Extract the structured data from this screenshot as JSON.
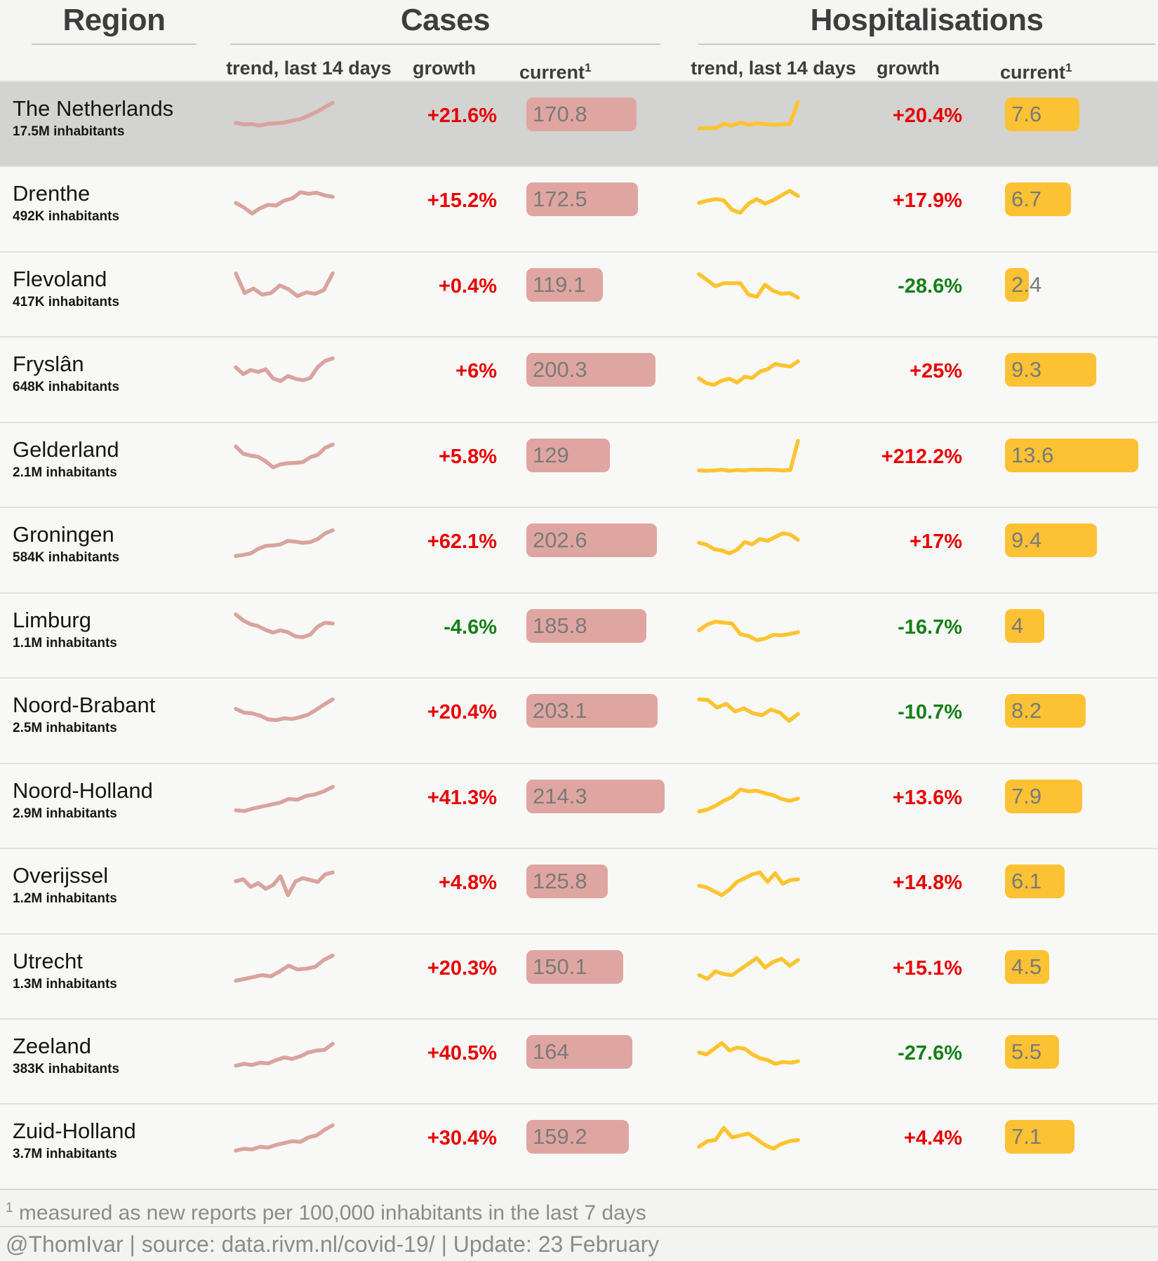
{
  "header": {
    "region_title": "Region",
    "cases_title": "Cases",
    "hosp_title": "Hospitalisations",
    "trend_label": "trend, last 14 days",
    "growth_label": "growth",
    "current_label": "current",
    "current_superscript": "1"
  },
  "colors": {
    "cases_line": "#d9a49e",
    "cases_bar": "#dfa6a1",
    "hosp_line": "#fdc431",
    "hosp_bar": "#fcc234",
    "growth_positive": "#e60000",
    "growth_negative": "#157f17",
    "bar_value_text": "#7a7a7a",
    "highlight_row": "#d3d3d1"
  },
  "rows": [
    {
      "region": "The Netherlands",
      "population": "17.5M inhabitants",
      "highlighted": true,
      "cases": {
        "growth": "+21.6%",
        "current": 170.8,
        "trend": [
          3.3,
          2.9,
          3.0,
          2.6,
          3.1,
          3.2,
          3.4,
          3.9,
          4.3,
          5.2,
          6.2,
          7.4,
          8.6
        ]
      },
      "hosp": {
        "growth": "+20.4%",
        "current": 7.6,
        "trend": [
          1.8,
          2.0,
          1.9,
          3.1,
          2.6,
          3.4,
          2.8,
          3.2,
          3.0,
          2.8,
          2.9,
          3.0,
          8.8
        ]
      }
    },
    {
      "region": "Drenthe",
      "population": "492K inhabitants",
      "highlighted": false,
      "cases": {
        "growth": "+15.2%",
        "current": 172.5,
        "trend": [
          4.6,
          3.4,
          1.8,
          3.2,
          4.1,
          3.9,
          5.2,
          5.8,
          7.4,
          7.0,
          7.3,
          6.6,
          6.2
        ]
      },
      "hosp": {
        "growth": "+17.9%",
        "current": 6.7,
        "trend": [
          4.6,
          5.2,
          5.6,
          5.3,
          2.8,
          2.0,
          4.4,
          5.6,
          4.4,
          5.3,
          6.6,
          7.8,
          6.4
        ]
      }
    },
    {
      "region": "Flevoland",
      "population": "417K inhabitants",
      "highlighted": false,
      "cases": {
        "growth": "+0.4%",
        "current": 119.1,
        "trend": [
          8.6,
          3.4,
          4.6,
          3.0,
          3.4,
          5.4,
          4.4,
          2.6,
          3.6,
          3.2,
          4.2,
          8.6
        ]
      },
      "hosp": {
        "growth": "-28.6%",
        "current": 2.4,
        "trend": [
          8.4,
          6.8,
          5.2,
          6.0,
          6.0,
          6.0,
          3.0,
          2.4,
          5.6,
          4.0,
          3.2,
          3.4,
          2.2
        ]
      }
    },
    {
      "region": "Fryslân",
      "population": "648K inhabitants",
      "highlighted": false,
      "cases": {
        "growth": "+6%",
        "current": 200.3,
        "trend": [
          6.2,
          4.4,
          5.5,
          5.0,
          5.7,
          3.3,
          2.6,
          3.9,
          3.2,
          2.8,
          3.4,
          6.3,
          7.9,
          8.6
        ]
      },
      "hosp": {
        "growth": "+25%",
        "current": 9.3,
        "trend": [
          3.3,
          2.0,
          1.6,
          2.7,
          3.2,
          2.2,
          3.7,
          3.4,
          5.1,
          5.7,
          7.1,
          6.7,
          6.4,
          7.8
        ]
      }
    },
    {
      "region": "Gelderland",
      "population": "2.1M inhabitants",
      "highlighted": false,
      "cases": {
        "growth": "+5.8%",
        "current": 129,
        "trend": [
          7.9,
          6.0,
          5.5,
          5.2,
          4.0,
          2.4,
          3.2,
          3.5,
          3.6,
          3.8,
          5.1,
          5.7,
          7.6,
          8.4
        ]
      },
      "hosp": {
        "growth": "+212.2%",
        "current": 13.6,
        "trend": [
          1.6,
          1.5,
          1.6,
          1.8,
          1.5,
          1.7,
          1.6,
          1.8,
          1.7,
          1.8,
          1.7,
          1.6,
          1.7,
          9.4
        ]
      }
    },
    {
      "region": "Groningen",
      "population": "584K inhabitants",
      "highlighted": false,
      "cases": {
        "growth": "+62.1%",
        "current": 202.6,
        "trend": [
          1.4,
          1.7,
          2.1,
          3.3,
          4.1,
          4.2,
          4.5,
          5.4,
          5.2,
          4.9,
          5.1,
          5.9,
          7.4,
          8.2
        ]
      },
      "hosp": {
        "growth": "+17%",
        "current": 9.4,
        "trend": [
          4.9,
          4.4,
          3.2,
          2.9,
          2.1,
          3.1,
          5.1,
          4.5,
          5.9,
          5.4,
          6.4,
          7.4,
          7.1,
          5.7
        ]
      }
    },
    {
      "region": "Limburg",
      "population": "1.1M inhabitants",
      "highlighted": false,
      "cases": {
        "growth": "-4.6%",
        "current": 185.8,
        "trend": [
          8.6,
          7.0,
          6.0,
          5.5,
          4.5,
          3.8,
          4.4,
          3.9,
          2.8,
          2.6,
          3.3,
          5.4,
          6.4,
          6.2
        ]
      },
      "hosp": {
        "growth": "-16.7%",
        "current": 4,
        "trend": [
          4.4,
          5.9,
          6.7,
          6.4,
          6.2,
          3.4,
          2.9,
          1.8,
          2.2,
          3.2,
          3.1,
          3.4,
          3.9
        ]
      }
    },
    {
      "region": "Noord-Brabant",
      "population": "2.5M inhabitants",
      "highlighted": false,
      "cases": {
        "growth": "+20.4%",
        "current": 203.1,
        "trend": [
          6.1,
          5.1,
          4.9,
          4.3,
          3.3,
          3.1,
          3.6,
          3.4,
          3.9,
          4.6,
          5.9,
          7.3,
          8.6
        ]
      },
      "hosp": {
        "growth": "-10.7%",
        "current": 8.2,
        "trend": [
          8.6,
          8.4,
          6.4,
          7.4,
          5.4,
          6.2,
          4.9,
          4.4,
          5.9,
          5.1,
          2.9,
          4.7
        ]
      }
    },
    {
      "region": "Noord-Holland",
      "population": "2.9M inhabitants",
      "highlighted": false,
      "cases": {
        "growth": "+41.3%",
        "current": 214.3,
        "trend": [
          1.9,
          1.7,
          2.4,
          2.9,
          3.4,
          3.9,
          4.9,
          4.7,
          5.7,
          6.1,
          6.9,
          8.1
        ]
      },
      "hosp": {
        "growth": "+13.6%",
        "current": 7.9,
        "trend": [
          1.6,
          2.1,
          3.1,
          4.4,
          5.4,
          7.4,
          6.9,
          7.1,
          6.4,
          5.9,
          4.9,
          4.4,
          5.0
        ]
      }
    },
    {
      "region": "Overijssel",
      "population": "1.2M inhabitants",
      "highlighted": false,
      "cases": {
        "growth": "+4.8%",
        "current": 125.8,
        "trend": [
          5.6,
          6.1,
          4.1,
          5.1,
          3.6,
          4.6,
          6.9,
          1.9,
          5.5,
          6.4,
          5.9,
          5.4,
          7.4,
          7.9
        ]
      },
      "hosp": {
        "growth": "+14.8%",
        "current": 6.1,
        "trend": [
          4.4,
          4.0,
          2.9,
          1.9,
          3.4,
          5.4,
          6.4,
          7.4,
          7.9,
          5.4,
          7.7,
          4.9,
          5.9,
          6.1
        ]
      }
    },
    {
      "region": "Utrecht",
      "population": "1.3M inhabitants",
      "highlighted": false,
      "cases": {
        "growth": "+20.3%",
        "current": 150.1,
        "trend": [
          1.9,
          2.4,
          2.9,
          3.4,
          3.1,
          4.4,
          5.9,
          4.9,
          5.1,
          5.6,
          7.4,
          8.6
        ]
      },
      "hosp": {
        "growth": "+15.1%",
        "current": 4.5,
        "trend": [
          3.4,
          2.4,
          4.4,
          3.7,
          3.4,
          4.9,
          6.4,
          7.9,
          5.4,
          6.9,
          7.7,
          5.9,
          7.4
        ]
      }
    },
    {
      "region": "Zeeland",
      "population": "383K inhabitants",
      "highlighted": false,
      "cases": {
        "growth": "+40.5%",
        "current": 164,
        "trend": [
          1.9,
          2.4,
          2.1,
          2.7,
          2.5,
          3.4,
          4.1,
          3.7,
          4.4,
          5.4,
          5.9,
          6.1,
          7.7
        ]
      },
      "hosp": {
        "growth": "-27.6%",
        "current": 5.5,
        "trend": [
          5.4,
          4.9,
          6.4,
          7.9,
          5.9,
          6.7,
          6.4,
          4.9,
          3.9,
          3.4,
          2.4,
          2.9,
          2.7,
          3.1
        ]
      }
    },
    {
      "region": "Zuid-Holland",
      "population": "3.7M inhabitants",
      "highlighted": false,
      "cases": {
        "growth": "+30.4%",
        "current": 159.2,
        "trend": [
          1.9,
          2.4,
          2.2,
          2.9,
          2.7,
          3.4,
          3.9,
          4.4,
          4.2,
          5.4,
          5.9,
          7.4,
          8.6
        ]
      },
      "hosp": {
        "growth": "+4.4%",
        "current": 7.1,
        "trend": [
          2.9,
          4.4,
          4.7,
          7.9,
          5.4,
          5.9,
          6.4,
          4.9,
          3.4,
          2.4,
          3.7,
          4.4,
          4.7
        ]
      }
    }
  ],
  "footer": {
    "footnote_superscript": "1",
    "footnote_text": " measured as new reports per 100,000 inhabitants in the last 7 days",
    "credit": "@ThomIvar | source: data.rivm.nl/covid-19/ | Update: 23 February"
  },
  "chart_data": {
    "type": "table",
    "title": "COVID-19 Cases and Hospitalisations by Dutch region",
    "columns": [
      "Region",
      "Cases trend (last 14 days)",
      "Cases growth",
      "Cases current per 100k/7d",
      "Hospitalisations trend (last 14 days)",
      "Hospitalisations growth",
      "Hospitalisations current per 100k/7d"
    ],
    "rows": [
      [
        "The Netherlands (17.5M)",
        "rising",
        "+21.6%",
        170.8,
        "flat then spike",
        "+20.4%",
        7.6
      ],
      [
        "Drenthe (492K)",
        "dip then rise",
        "+15.2%",
        172.5,
        "jagged rising",
        "+17.9%",
        6.7
      ],
      [
        "Flevoland (417K)",
        "volatile, end spike",
        "+0.4%",
        119.1,
        "declining",
        "-28.6%",
        2.4
      ],
      [
        "Fryslân (648K)",
        "dip then strong rise",
        "+6%",
        200.3,
        "rising",
        "+25%",
        9.3
      ],
      [
        "Gelderland (2.1M)",
        "U-shape rise",
        "+5.8%",
        129,
        "flat then huge spike",
        "+212.2%",
        13.6
      ],
      [
        "Groningen (584K)",
        "steady rise",
        "+62.1%",
        202.6,
        "dip then rise",
        "+17%",
        9.4
      ],
      [
        "Limburg (1.1M)",
        "decline then recover",
        "-4.6%",
        185.8,
        "peak then decline",
        "-16.7%",
        4
      ],
      [
        "Noord-Brabant (2.5M)",
        "U-shape strong rise",
        "+20.4%",
        203.1,
        "declining jagged",
        "-10.7%",
        8.2
      ],
      [
        "Noord-Holland (2.9M)",
        "steady rise",
        "+41.3%",
        214.3,
        "rise peak then ease",
        "+13.6%",
        7.9
      ],
      [
        "Overijssel (1.2M)",
        "very jagged, end high",
        "+4.8%",
        125.8,
        "dip then jagged rise",
        "+14.8%",
        6.1
      ],
      [
        "Utrecht (1.3M)",
        "rising with bumps",
        "+20.3%",
        150.1,
        "jagged rising",
        "+15.1%",
        4.5
      ],
      [
        "Zeeland (383K)",
        "steady rise",
        "+40.5%",
        164,
        "peak then decline",
        "-27.6%",
        5.5
      ],
      [
        "Zuid-Holland (3.7M)",
        "steady rise",
        "+30.4%",
        159.2,
        "spike then decline recover",
        "+4.4%",
        7.1
      ]
    ],
    "bar_scale": {
      "cases_max": 214.3,
      "hosp_max": 13.6
    },
    "note": "measured as new reports per 100,000 inhabitants in the last 7 days",
    "source": "@ThomIvar | source: data.rivm.nl/covid-19/ | Update: 23 February"
  }
}
